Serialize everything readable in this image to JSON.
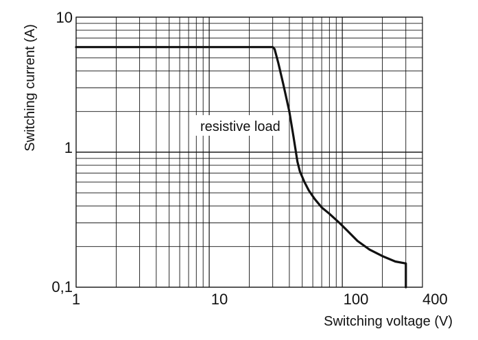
{
  "chart_data": {
    "type": "line",
    "xlabel": "Switching voltage (V)",
    "ylabel": "Switching current (A)",
    "x_scale": "log",
    "y_scale": "log",
    "xlim": [
      1,
      400
    ],
    "ylim": [
      0.1,
      10
    ],
    "grid": true,
    "x_tick_labels": [
      "1",
      "10",
      "100",
      "400"
    ],
    "x_tick_values": [
      1,
      10,
      100,
      400
    ],
    "y_tick_labels": [
      "0,1",
      "1",
      "10"
    ],
    "y_tick_values": [
      0.1,
      1,
      10
    ],
    "annotations": [
      {
        "text": "resistive load",
        "x": 5.3,
        "y": 2.0
      }
    ],
    "series": [
      {
        "x": [
          1,
          30,
          31,
          33,
          36,
          40,
          43,
          46,
          48,
          52,
          56,
          62,
          70,
          80,
          95,
          110,
          130,
          160,
          200,
          250,
          300,
          300
        ],
        "y": [
          6,
          6,
          5.8,
          4.6,
          3.2,
          2.0,
          1.3,
          0.85,
          0.72,
          0.6,
          0.52,
          0.45,
          0.39,
          0.35,
          0.3,
          0.26,
          0.22,
          0.19,
          0.17,
          0.155,
          0.15,
          0.1
        ]
      }
    ]
  }
}
